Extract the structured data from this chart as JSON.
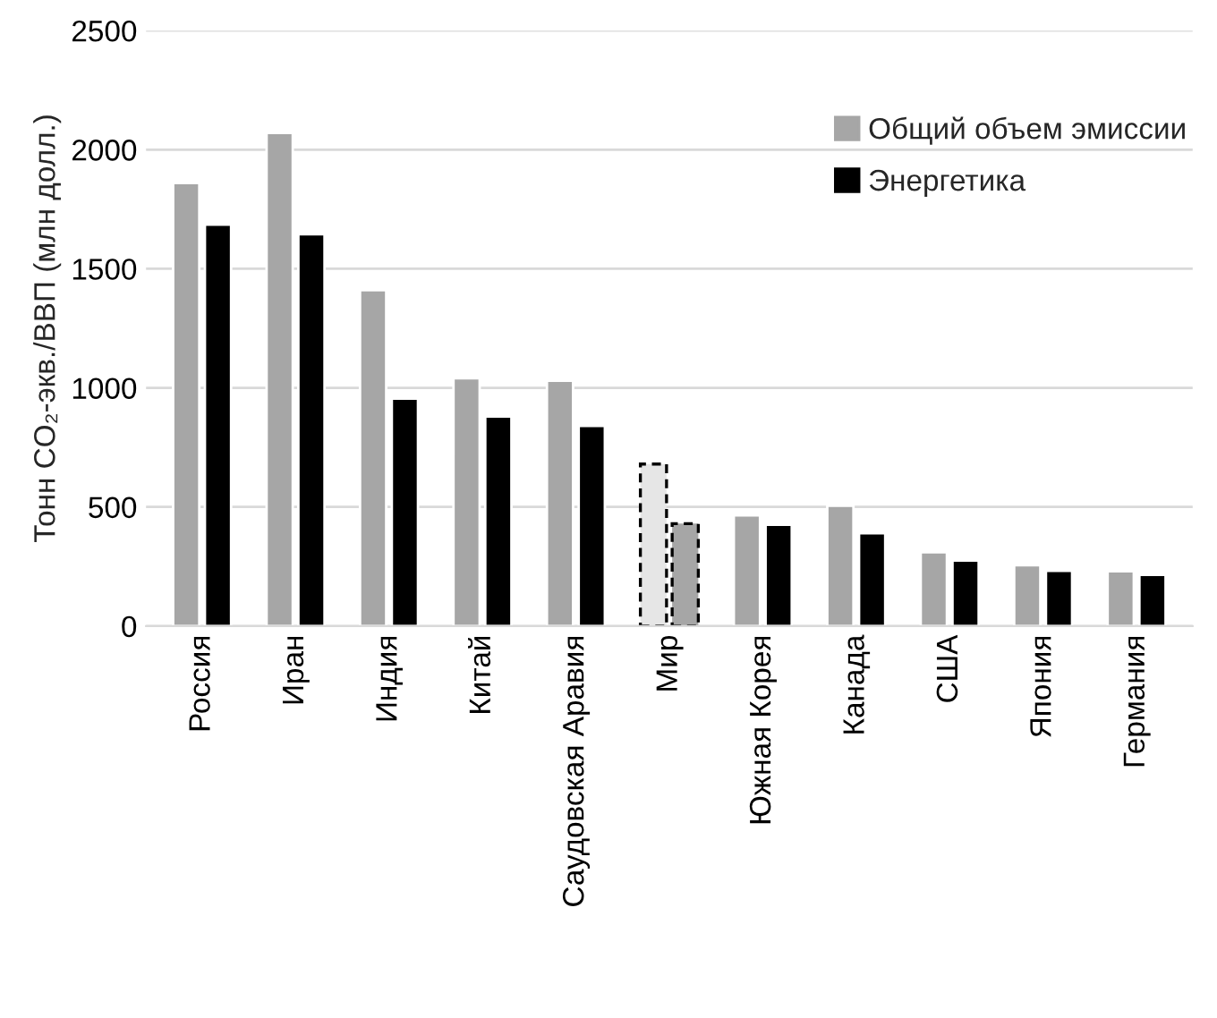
{
  "chart_data": {
    "type": "bar",
    "ylabel": "Тонн CO₂-экв./ВВП (млн долл.)",
    "categories": [
      "Россия",
      "Иран",
      "Индия",
      "Китай",
      "Саудовская Аравия",
      "Мир",
      "Южная Корея",
      "Канада",
      "США",
      "Япония",
      "Германия"
    ],
    "series": [
      {
        "name": "Общий объем эмиссии",
        "color": "#a6a6a6",
        "colors": [
          "#a6a6a6",
          "#a6a6a6",
          "#a6a6a6",
          "#a6a6a6",
          "#a6a6a6",
          "#e6e6e6",
          "#a6a6a6",
          "#a6a6a6",
          "#a6a6a6",
          "#a6a6a6",
          "#a6a6a6"
        ],
        "values": [
          1860,
          2070,
          1410,
          1040,
          1030,
          680,
          465,
          505,
          310,
          255,
          230
        ]
      },
      {
        "name": "Энергетика",
        "color": "#000000",
        "colors": [
          "#000000",
          "#000000",
          "#000000",
          "#000000",
          "#000000",
          "#a6a6a6",
          "#000000",
          "#000000",
          "#000000",
          "#000000",
          "#000000"
        ],
        "values": [
          1685,
          1645,
          955,
          880,
          840,
          430,
          425,
          390,
          275,
          232,
          215
        ]
      }
    ],
    "ylim": [
      0,
      2500
    ],
    "yticks": [
      0,
      500,
      1000,
      1500,
      2000,
      2500
    ],
    "grid": "y",
    "legend": "top right"
  }
}
